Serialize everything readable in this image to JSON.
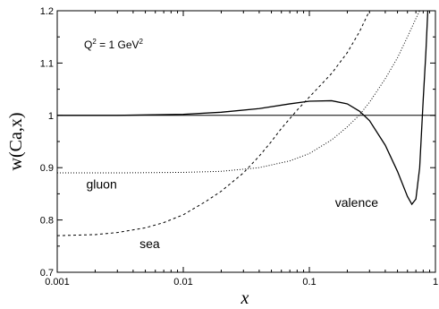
{
  "chart_data": {
    "type": "line",
    "x_scale": "log",
    "xlim": [
      0.001,
      1
    ],
    "ylim": [
      0.7,
      1.2
    ],
    "xlabel": "x",
    "ylabel": "w(Ca,x)",
    "x_ticks": [
      {
        "value": 0.001,
        "label": "0.001"
      },
      {
        "value": 0.01,
        "label": "0.01"
      },
      {
        "value": 0.1,
        "label": "0.1"
      },
      {
        "value": 1,
        "label": "1"
      }
    ],
    "y_ticks": [
      {
        "value": 0.7,
        "label": "0.7"
      },
      {
        "value": 0.8,
        "label": "0.8"
      },
      {
        "value": 0.9,
        "label": "0.9"
      },
      {
        "value": 1.0,
        "label": "1"
      },
      {
        "value": 1.1,
        "label": "1.1"
      },
      {
        "value": 1.2,
        "label": "1.2"
      }
    ],
    "annotation": {
      "prefix": "Q",
      "sup1": "2",
      "mid": " = 1 GeV",
      "sup2": "2"
    },
    "reference_line": 1.0,
    "series": [
      {
        "name": "valence",
        "style": "solid",
        "points": [
          [
            0.001,
            1.0
          ],
          [
            0.003,
            1.0
          ],
          [
            0.01,
            1.002
          ],
          [
            0.02,
            1.006
          ],
          [
            0.04,
            1.013
          ],
          [
            0.07,
            1.022
          ],
          [
            0.1,
            1.027
          ],
          [
            0.15,
            1.028
          ],
          [
            0.2,
            1.022
          ],
          [
            0.25,
            1.008
          ],
          [
            0.3,
            0.99
          ],
          [
            0.4,
            0.943
          ],
          [
            0.5,
            0.893
          ],
          [
            0.6,
            0.845
          ],
          [
            0.65,
            0.83
          ],
          [
            0.7,
            0.84
          ],
          [
            0.75,
            0.9
          ],
          [
            0.8,
            1.03
          ],
          [
            0.84,
            1.12
          ],
          [
            0.87,
            1.2
          ]
        ]
      },
      {
        "name": "sea",
        "style": "dashed",
        "points": [
          [
            0.001,
            0.77
          ],
          [
            0.002,
            0.772
          ],
          [
            0.003,
            0.776
          ],
          [
            0.005,
            0.785
          ],
          [
            0.007,
            0.795
          ],
          [
            0.01,
            0.81
          ],
          [
            0.015,
            0.835
          ],
          [
            0.02,
            0.855
          ],
          [
            0.03,
            0.89
          ],
          [
            0.04,
            0.922
          ],
          [
            0.05,
            0.95
          ],
          [
            0.06,
            0.975
          ],
          [
            0.08,
            1.01
          ],
          [
            0.1,
            1.035
          ],
          [
            0.15,
            1.08
          ],
          [
            0.2,
            1.12
          ],
          [
            0.25,
            1.16
          ],
          [
            0.3,
            1.2
          ]
        ]
      },
      {
        "name": "gluon",
        "style": "dotted",
        "points": [
          [
            0.001,
            0.89
          ],
          [
            0.003,
            0.89
          ],
          [
            0.01,
            0.891
          ],
          [
            0.02,
            0.893
          ],
          [
            0.04,
            0.9
          ],
          [
            0.07,
            0.913
          ],
          [
            0.1,
            0.927
          ],
          [
            0.15,
            0.953
          ],
          [
            0.2,
            0.978
          ],
          [
            0.25,
            1.001
          ],
          [
            0.3,
            1.025
          ],
          [
            0.4,
            1.07
          ],
          [
            0.5,
            1.11
          ],
          [
            0.6,
            1.15
          ],
          [
            0.7,
            1.185
          ],
          [
            0.75,
            1.2
          ]
        ]
      }
    ],
    "labels": [
      {
        "text": "gluon",
        "x": 0.0017,
        "y": 0.86
      },
      {
        "text": "sea",
        "x": 0.0045,
        "y": 0.746
      },
      {
        "text": "valence",
        "x": 0.16,
        "y": 0.825
      }
    ]
  }
}
